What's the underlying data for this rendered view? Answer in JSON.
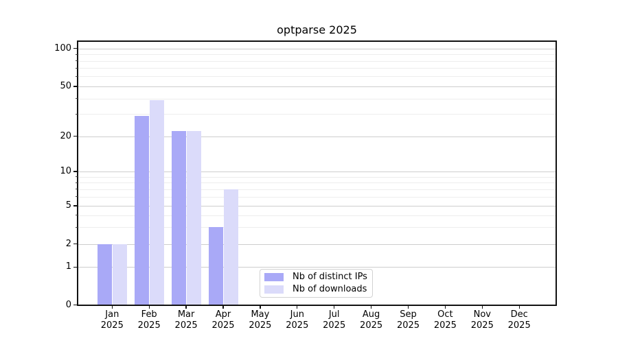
{
  "chart_data": {
    "type": "bar",
    "title": "optparse 2025",
    "categories": [
      "Jan 2025",
      "Feb 2025",
      "Mar 2025",
      "Apr 2025",
      "May 2025",
      "Jun 2025",
      "Jul 2025",
      "Aug 2025",
      "Sep 2025",
      "Oct 2025",
      "Nov 2025",
      "Dec 2025"
    ],
    "series": [
      {
        "name": "Nb of distinct IPs",
        "color": "#a9a9f7",
        "values": [
          2,
          29,
          22,
          3,
          0,
          0,
          0,
          0,
          0,
          0,
          0,
          0
        ]
      },
      {
        "name": "Nb of downloads",
        "color": "#dbdbfa",
        "values": [
          2,
          39,
          22,
          7,
          0,
          0,
          0,
          0,
          0,
          0,
          0,
          0
        ]
      }
    ],
    "xlabel": "",
    "ylabel": "",
    "y_ticks": [
      0,
      1,
      2,
      5,
      10,
      20,
      50,
      100
    ],
    "yscale": "log-like (linear 0-1, log above)",
    "ylim": [
      0,
      115
    ],
    "grid": "horizontal major and minor gridlines",
    "legend_position": "lower center"
  },
  "colors": {
    "background": "#ffffff",
    "axis": "#111111",
    "grid_major": "#cdcdcd",
    "grid_minor": "#ededed",
    "series_distinct_ips": "#a9a9f7",
    "series_downloads": "#dbdbfa"
  }
}
